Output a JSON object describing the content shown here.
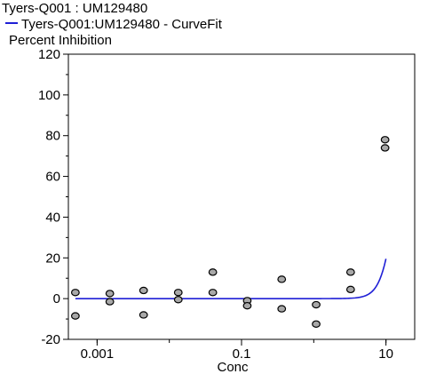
{
  "title": "Tyers-Q001  :  UM129480",
  "chart_data": {
    "type": "scatter",
    "title": "Tyers-Q001  :  UM129480",
    "xlabel": "Conc",
    "ylabel": "Percent  Inhibition",
    "x_scale": "log",
    "xlim": [
      0.0004,
      25
    ],
    "ylim": [
      -20,
      120
    ],
    "y_ticks": [
      -20,
      0,
      20,
      40,
      60,
      80,
      100,
      120
    ],
    "x_ticks": [
      0.001,
      0.1,
      10
    ],
    "x_tick_labels": [
      "0.001",
      "0.1",
      "10"
    ],
    "legend": {
      "position": "top-left",
      "entries": [
        {
          "label": "Tyers-Q001:UM129480 - CurveFit",
          "color": "#1f1fd6"
        }
      ]
    },
    "series": [
      {
        "type": "scatter",
        "color": "#a8a8a8",
        "points": [
          {
            "x": 0.0005,
            "y": 3
          },
          {
            "x": 0.0005,
            "y": -8.5
          },
          {
            "x": 0.0015,
            "y": 2.5
          },
          {
            "x": 0.0015,
            "y": -1.5
          },
          {
            "x": 0.0044,
            "y": 4
          },
          {
            "x": 0.0044,
            "y": -8
          },
          {
            "x": 0.0133,
            "y": 3
          },
          {
            "x": 0.0133,
            "y": -0.5
          },
          {
            "x": 0.04,
            "y": 13
          },
          {
            "x": 0.04,
            "y": 3
          },
          {
            "x": 0.12,
            "y": -1
          },
          {
            "x": 0.12,
            "y": -3.5
          },
          {
            "x": 0.36,
            "y": 9.5
          },
          {
            "x": 0.36,
            "y": -5
          },
          {
            "x": 1.08,
            "y": -3
          },
          {
            "x": 1.08,
            "y": -12.5
          },
          {
            "x": 3.24,
            "y": 13
          },
          {
            "x": 3.24,
            "y": 4.5
          },
          {
            "x": 9.72,
            "y": 78
          },
          {
            "x": 9.72,
            "y": 74
          }
        ]
      },
      {
        "type": "line",
        "color": "#1f1fd6",
        "name": "Tyers-Q001:UM129480 - CurveFit",
        "fit": {
          "model": "hill",
          "bottom": 0,
          "top": 100,
          "ic50": 13.9,
          "hill_slope": 4.3
        },
        "x_range": [
          0.0005,
          10
        ]
      }
    ]
  }
}
